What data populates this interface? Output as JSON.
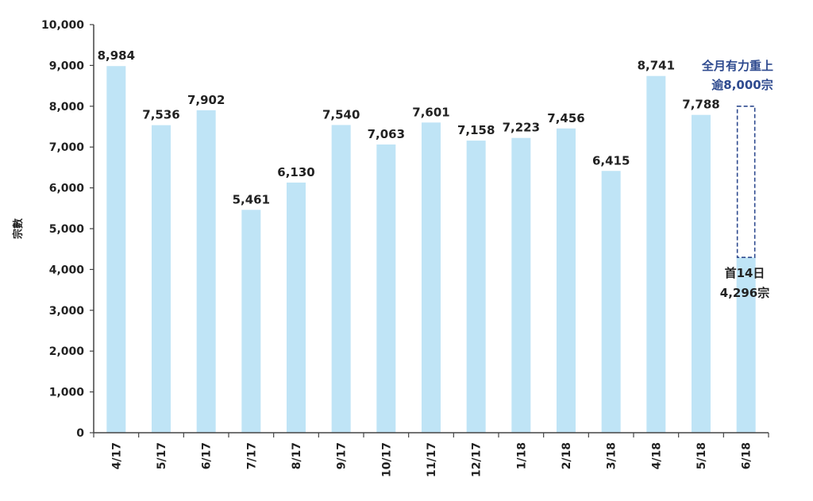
{
  "chart_data": {
    "type": "bar",
    "ylabel": "宗數",
    "xlabel": "",
    "ylim": [
      0,
      10000
    ],
    "yticks": [
      0,
      1000,
      2000,
      3000,
      4000,
      5000,
      6000,
      7000,
      8000,
      9000,
      10000
    ],
    "ytick_labels": [
      "0",
      "1,000",
      "2,000",
      "3,000",
      "4,000",
      "5,000",
      "6,000",
      "7,000",
      "8,000",
      "9,000",
      "10,000"
    ],
    "categories": [
      "4/17",
      "5/17",
      "6/17",
      "7/17",
      "8/17",
      "9/17",
      "10/17",
      "11/17",
      "12/17",
      "1/18",
      "2/18",
      "3/18",
      "4/18",
      "5/18",
      "6/18"
    ],
    "values": [
      8984,
      7536,
      7902,
      5461,
      6130,
      7540,
      7063,
      7601,
      7158,
      7223,
      7456,
      6415,
      8741,
      7788,
      4296
    ],
    "data_labels": [
      "8,984",
      "7,536",
      "7,902",
      "5,461",
      "6,130",
      "7,540",
      "7,063",
      "7,601",
      "7,158",
      "7,223",
      "7,456",
      "6,415",
      "8,741",
      "7,788",
      ""
    ],
    "bar_color": "#bfe4f6",
    "projection": {
      "category": "6/18",
      "from": 4296,
      "to": 8000,
      "color": "#2e4a8f"
    },
    "annotations": {
      "projection_line1": "全月有力重上",
      "projection_line2": "逾8,000宗",
      "partial_line1": "首14日",
      "partial_line2": "4,296宗"
    },
    "grid": false
  }
}
